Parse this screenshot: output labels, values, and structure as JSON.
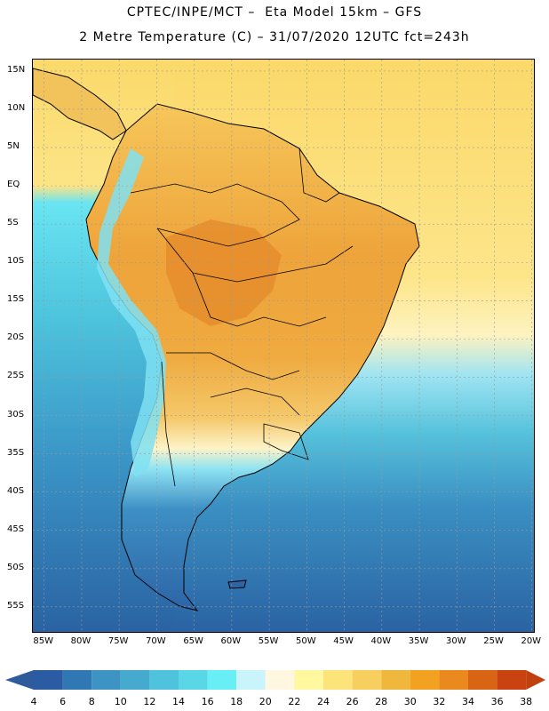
{
  "header": {
    "line1": "CPTEC/INPE/MCT –  Eta Model 15km – GFS",
    "line2": "2 Metre Temperature (C) – 31/07/2020 12UTC fct=243h"
  },
  "map": {
    "lat_labels": [
      "15N",
      "10N",
      "5N",
      "EQ",
      "5S",
      "10S",
      "15S",
      "20S",
      "25S",
      "30S",
      "35S",
      "40S",
      "45S",
      "50S",
      "55S"
    ],
    "lon_labels": [
      "85W",
      "80W",
      "75W",
      "70W",
      "65W",
      "60W",
      "55W",
      "50W",
      "45W",
      "40W",
      "35W",
      "30W",
      "25W",
      "20W"
    ],
    "extent": {
      "lon_min": -86.5,
      "lon_max": -19.5,
      "lat_max": 16.5,
      "lat_min": -58.5
    },
    "colors": {
      "ocean_north": "#fbe07c",
      "ocean_warm": "#fdf0a6",
      "ocean_mid": "#87dff2",
      "ocean_cool": "#4db9d6",
      "ocean_south": "#2a6aa8",
      "land_warm": "#f2b44a",
      "land_hot": "#e9952c",
      "andes": "#8fe8f5",
      "patagonia": "#3b7fb8",
      "border": "#000000"
    }
  },
  "colorbar": {
    "labels": [
      "4",
      "6",
      "8",
      "10",
      "12",
      "14",
      "16",
      "18",
      "20",
      "22",
      "24",
      "26",
      "28",
      "30",
      "32",
      "34",
      "36",
      "38"
    ],
    "colors": [
      "#2b5ba3",
      "#2f78b3",
      "#3c93c4",
      "#46aacf",
      "#4fc3de",
      "#5ad7e6",
      "#68eff5",
      "#c9f4fb",
      "#fff7e0",
      "#fff89e",
      "#fde47a",
      "#f6cf5e",
      "#efb83c",
      "#f2a220",
      "#ea8a1e",
      "#d96414",
      "#c9420f"
    ],
    "left_arrow_color": "#2e5b9b",
    "right_arrow_color": "#c1410e"
  }
}
